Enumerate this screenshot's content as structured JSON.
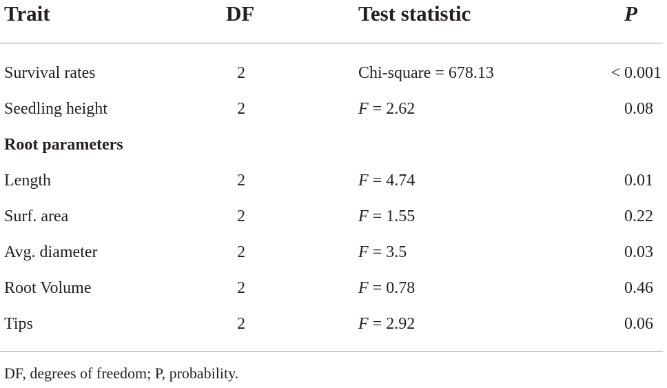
{
  "table": {
    "headers": {
      "trait": "Trait",
      "df": "DF",
      "test_statistic": "Test statistic",
      "p": "P"
    },
    "rows": [
      {
        "trait": "Survival rates",
        "df": "2",
        "stat_var": "",
        "stat_rest": "Chi-square = 678.13",
        "p": "< 0.001",
        "bold": false
      },
      {
        "trait": "Seedling height",
        "df": "2",
        "stat_var": "F",
        "stat_rest": " = 2.62",
        "p": "0.08",
        "bold": false
      },
      {
        "trait": "Root parameters",
        "df": "",
        "stat_var": "",
        "stat_rest": "",
        "p": "",
        "bold": true
      },
      {
        "trait": "Length",
        "df": "2",
        "stat_var": "F",
        "stat_rest": " = 4.74",
        "p": "0.01",
        "bold": false
      },
      {
        "trait": "Surf. area",
        "df": "2",
        "stat_var": "F",
        "stat_rest": " = 1.55",
        "p": "0.22",
        "bold": false
      },
      {
        "trait": "Avg. diameter",
        "df": "2",
        "stat_var": "F",
        "stat_rest": " = 3.5",
        "p": "0.03",
        "bold": false
      },
      {
        "trait": "Root Volume",
        "df": "2",
        "stat_var": "F",
        "stat_rest": " = 0.78",
        "p": "0.46",
        "bold": false
      },
      {
        "trait": "Tips",
        "df": "2",
        "stat_var": "F",
        "stat_rest": " = 2.92",
        "p": "0.06",
        "bold": false
      }
    ],
    "footnote": "DF, degrees of freedom; P, probability."
  }
}
